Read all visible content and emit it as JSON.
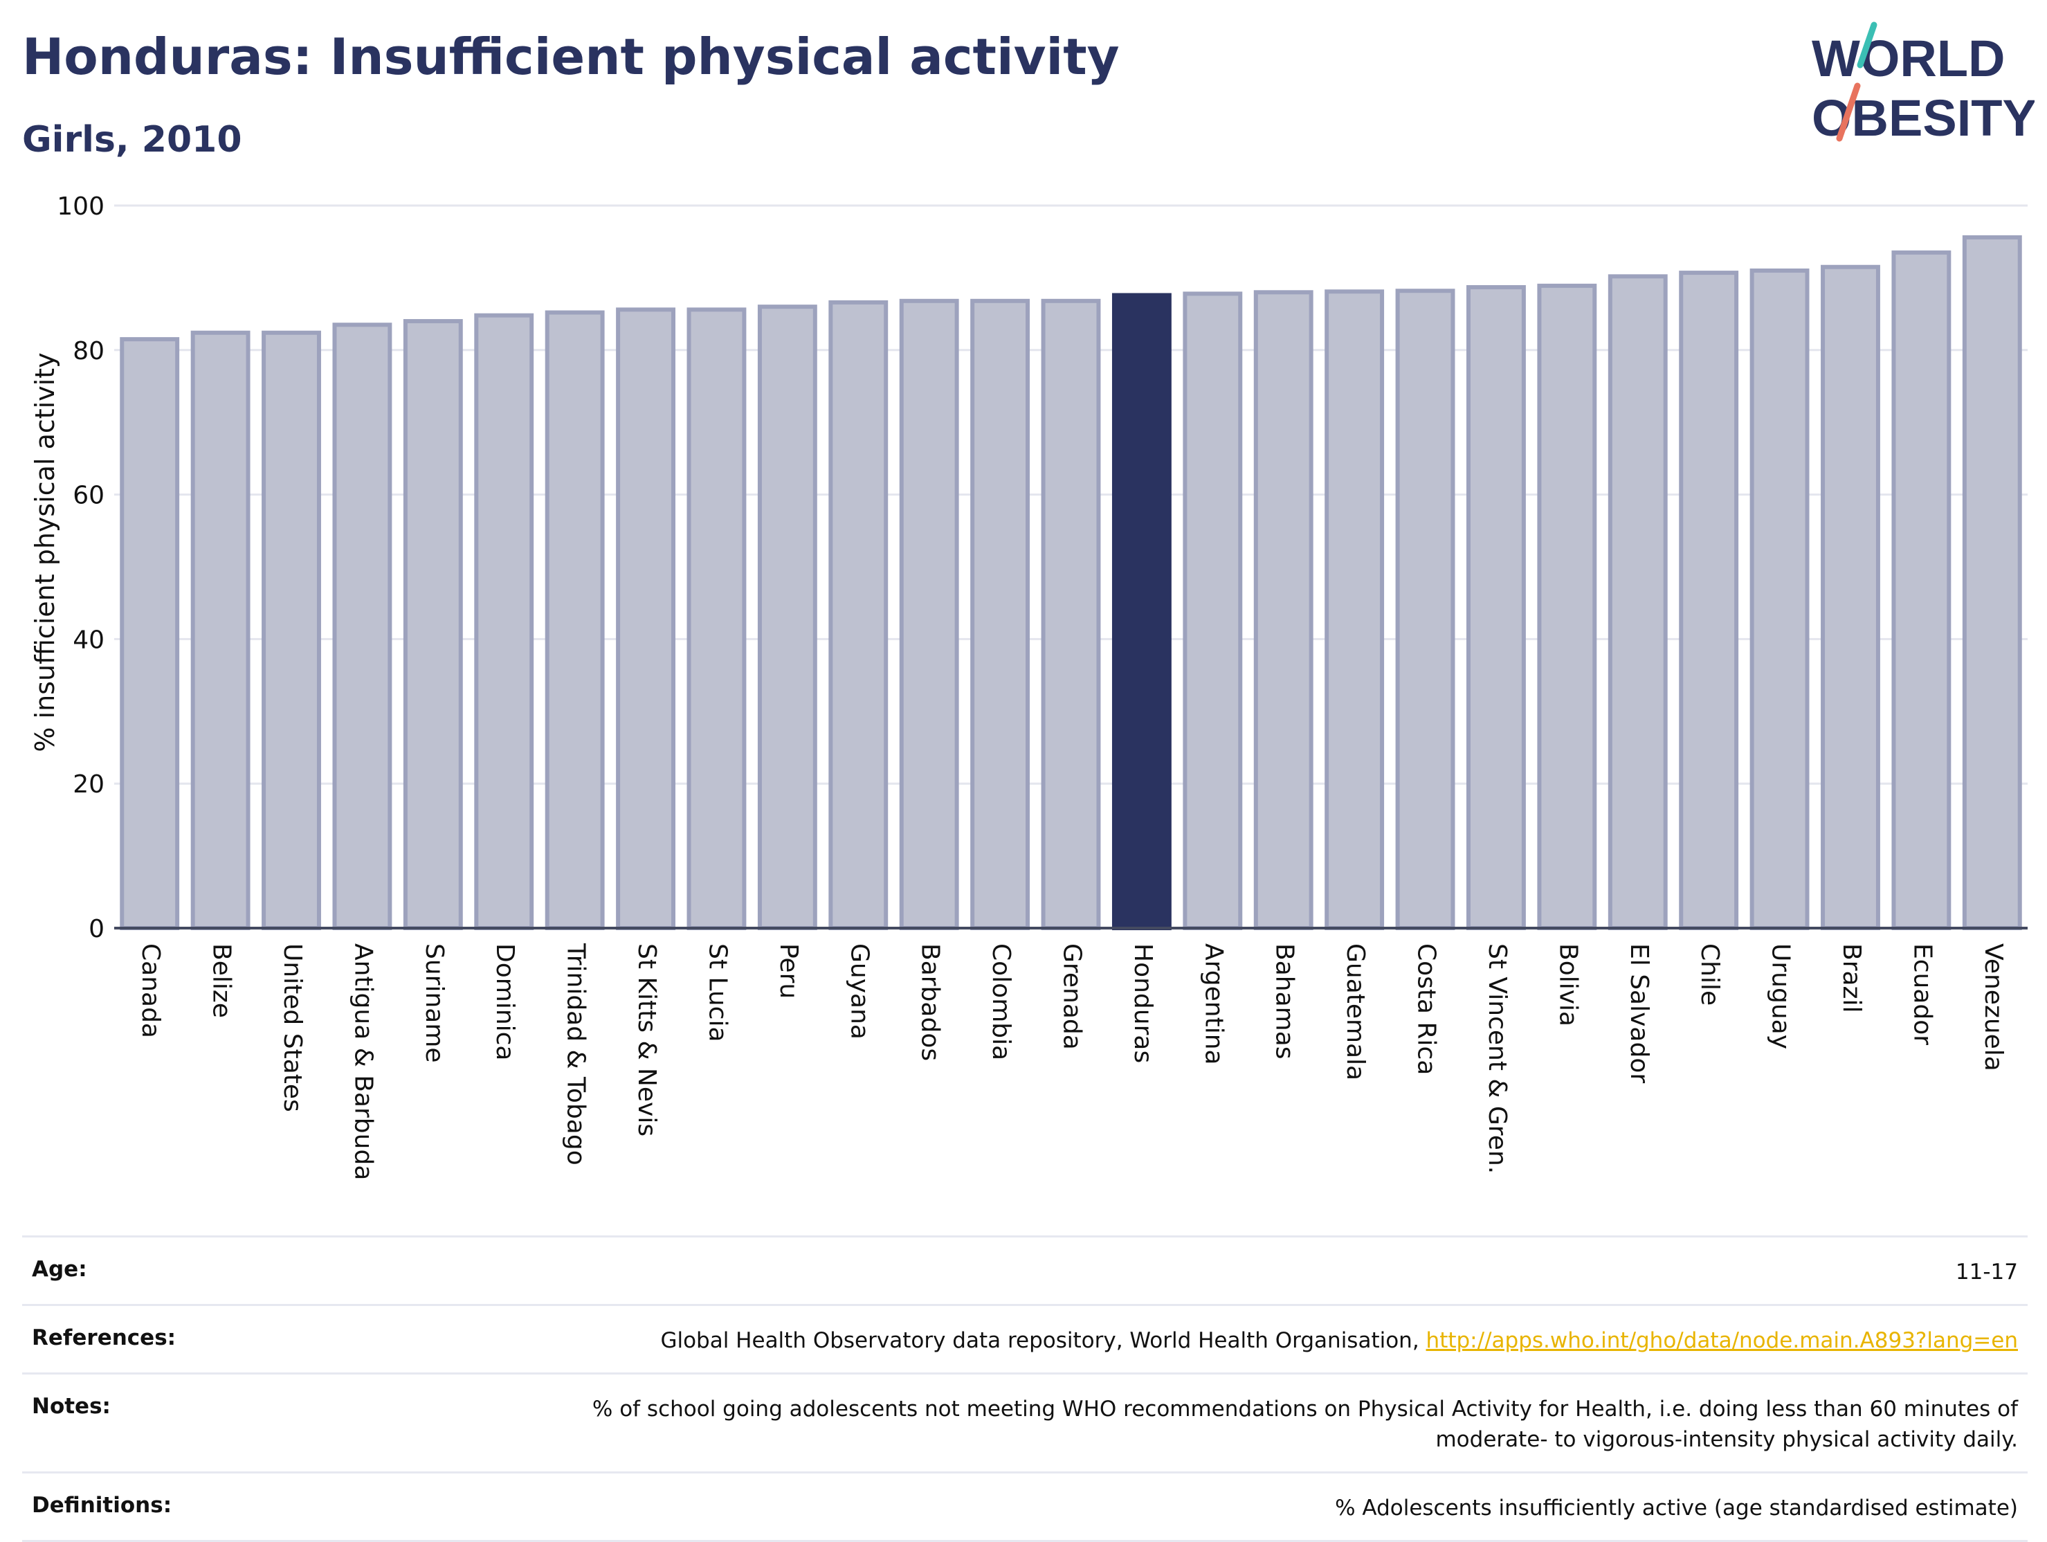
{
  "header": {
    "title": "Honduras: Insufficient physical activity",
    "subtitle": "Girls, 2010"
  },
  "logo": {
    "line1": "WORLD",
    "line2": "OBESITY"
  },
  "colors": {
    "highlight": "#2a3360",
    "bar": "#bec1d0",
    "bar_border": "#9da2bd",
    "logo_teal": "#3bbfb4",
    "logo_coral": "#e8735e",
    "link": "#e8b400"
  },
  "chart_data": {
    "type": "bar",
    "title": "Honduras: Insufficient physical activity",
    "subtitle": "Girls, 2010",
    "ylabel": "% insufficient physical activity",
    "xlabel": "",
    "ylim": [
      0,
      100
    ],
    "yticks": [
      0,
      20,
      40,
      60,
      80,
      100
    ],
    "grid": true,
    "highlight": "Honduras",
    "categories": [
      "Canada",
      "Belize",
      "United States",
      "Antigua & Barbuda",
      "Suriname",
      "Dominica",
      "Trinidad & Tobago",
      "St Kitts & Nevis",
      "St Lucia",
      "Peru",
      "Guyana",
      "Barbados",
      "Colombia",
      "Grenada",
      "Honduras",
      "Argentina",
      "Bahamas",
      "Guatemala",
      "Costa Rica",
      "St Vincent & Gren.",
      "Bolivia",
      "El Salvador",
      "Chile",
      "Uruguay",
      "Brazil",
      "Ecuador",
      "Venezuela"
    ],
    "values": [
      81.5,
      82.4,
      82.4,
      83.5,
      84.0,
      84.8,
      85.2,
      85.6,
      85.6,
      86.0,
      86.6,
      86.8,
      86.8,
      86.8,
      87.6,
      87.8,
      88.0,
      88.1,
      88.2,
      88.7,
      88.9,
      90.2,
      90.7,
      91.0,
      91.5,
      93.5,
      95.6
    ]
  },
  "footer": {
    "age_label": "Age:",
    "age_value": "11-17",
    "references_label": "References:",
    "references_text": "Global Health Observatory data repository, World Health Organisation, ",
    "references_link": "http://apps.who.int/gho/data/node.main.A893?lang=en",
    "notes_label": "Notes:",
    "notes_line1": "% of school going adolescents not meeting WHO recommendations on Physical Activity for Health, i.e. doing less than 60 minutes of",
    "notes_line2": "moderate- to vigorous-intensity physical activity daily.",
    "definitions_label": "Definitions:",
    "definitions_value": "% Adolescents insufficiently active (age standardised estimate)"
  }
}
